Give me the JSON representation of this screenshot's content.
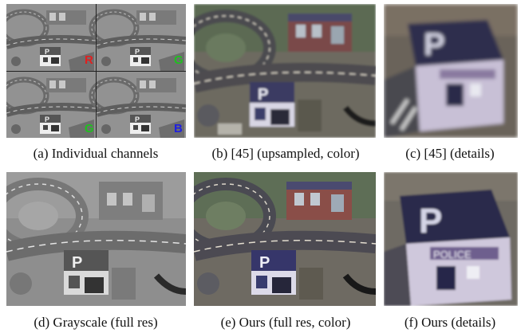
{
  "figure": {
    "panels": [
      {
        "id": "a",
        "caption": "(a) Individual channels",
        "channel_labels": [
          "R",
          "G",
          "G",
          "B"
        ]
      },
      {
        "id": "b",
        "caption": "(b) [45] (upsampled, color)"
      },
      {
        "id": "c",
        "caption": "(c) [45] (details)"
      },
      {
        "id": "d",
        "caption": "(d) Grayscale (full res)"
      },
      {
        "id": "e",
        "caption": "(e) Ours (full res, color)"
      },
      {
        "id": "f",
        "caption": "(f) Ours (details)"
      }
    ],
    "colors": {
      "R": "#e02020",
      "G": "#20c020",
      "B": "#2020e0"
    }
  }
}
